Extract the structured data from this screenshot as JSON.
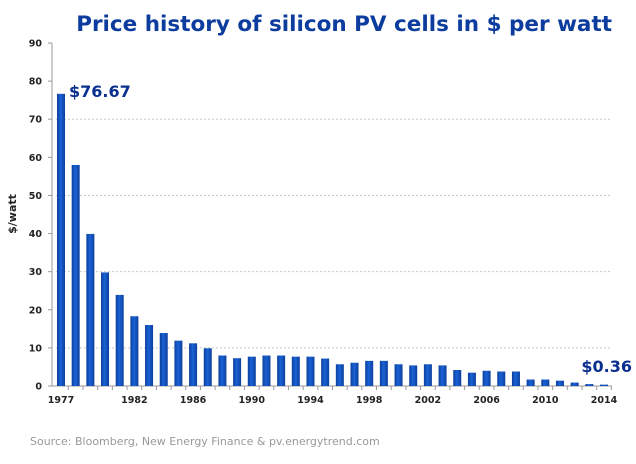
{
  "chart_data": {
    "type": "bar",
    "title": "Price history of silicon PV cells in $ per watt",
    "xlabel": "",
    "ylabel": "$/watt",
    "ylim": [
      0,
      90
    ],
    "yticks": [
      0,
      10,
      20,
      30,
      40,
      50,
      60,
      70,
      80,
      90
    ],
    "grid": {
      "y": true,
      "style": "dotted",
      "lines": [
        10,
        30,
        50,
        70
      ]
    },
    "xtick_labels": [
      "1977",
      "1982",
      "1986",
      "1990",
      "1994",
      "1998",
      "2002",
      "2006",
      "2010",
      "2014"
    ],
    "categories": [
      1977,
      1978,
      1979,
      1980,
      1981,
      1982,
      1983,
      1984,
      1985,
      1986,
      1987,
      1988,
      1989,
      1990,
      1991,
      1992,
      1993,
      1994,
      1995,
      1996,
      1997,
      1998,
      1999,
      2000,
      2001,
      2002,
      2003,
      2004,
      2005,
      2006,
      2007,
      2008,
      2009,
      2010,
      2011,
      2012,
      2013,
      2014
    ],
    "values": [
      76.67,
      58.0,
      39.9,
      29.8,
      23.9,
      18.3,
      16.0,
      13.9,
      11.9,
      11.2,
      9.9,
      8.0,
      7.3,
      7.7,
      8.0,
      8.0,
      7.7,
      7.7,
      7.2,
      5.7,
      6.1,
      6.6,
      6.6,
      5.7,
      5.4,
      5.7,
      5.4,
      4.2,
      3.5,
      4.0,
      3.8,
      3.8,
      1.7,
      1.7,
      1.4,
      0.9,
      0.5,
      0.36
    ],
    "annotations": [
      {
        "text": "$76.67",
        "category": 1977
      },
      {
        "text": "$0.36",
        "category": 2014
      }
    ],
    "bar_color": "#1456c8",
    "title_color": "#0b3c9e"
  },
  "source": "Source: Bloomberg, New Energy Finance & pv.energytrend.com"
}
